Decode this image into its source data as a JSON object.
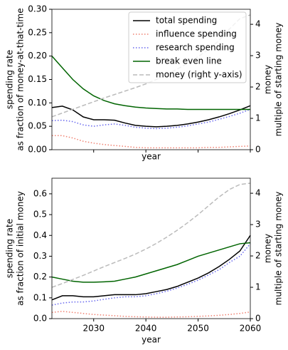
{
  "chart_data": [
    {
      "type": "line",
      "ylabel": [
        "spending rate",
        "as fraction of money-at-that-time"
      ],
      "y2label": [
        "money",
        "multiple of starting money"
      ],
      "xlabel": "year",
      "x": [
        2022,
        2024,
        2026,
        2028,
        2030,
        2032,
        2034,
        2036,
        2038,
        2040,
        2042,
        2044,
        2046,
        2048,
        2050,
        2052,
        2054,
        2056,
        2058,
        2060
      ],
      "xlim": [
        2022,
        2060
      ],
      "xticks": [
        2030,
        2040,
        2050,
        2060
      ],
      "show_xtick_labels": false,
      "ylim": [
        0,
        0.3
      ],
      "yticks": [
        {
          "value": 0,
          "label": "0.00"
        },
        {
          "value": 0.05,
          "label": "0.05"
        },
        {
          "value": 0.1,
          "label": "0.10"
        },
        {
          "value": 0.15,
          "label": "0.15"
        },
        {
          "value": 0.2,
          "label": "0.20"
        },
        {
          "value": 0.25,
          "label": "0.25"
        },
        {
          "value": 0.3,
          "label": "0.30"
        }
      ],
      "y2lim": [
        0,
        4.48
      ],
      "y2ticks": [
        0,
        1,
        2,
        3,
        4
      ],
      "legend": "upper right",
      "series": [
        {
          "name": "total spending",
          "color": "#000000",
          "linestyle": "solid",
          "values": [
            0.09,
            0.093,
            0.085,
            0.07,
            0.064,
            0.064,
            0.063,
            0.057,
            0.052,
            0.05,
            0.049,
            0.05,
            0.052,
            0.055,
            0.059,
            0.064,
            0.07,
            0.077,
            0.085,
            0.094
          ]
        },
        {
          "name": "influence spending",
          "color": "#f08070",
          "linestyle": "dotted",
          "values": [
            0.03,
            0.03,
            0.025,
            0.018,
            0.014,
            0.011,
            0.009,
            0.007,
            0.005,
            0.004,
            0.004,
            0.004,
            0.004,
            0.004,
            0.004,
            0.005,
            0.005,
            0.006,
            0.007,
            0.008
          ]
        },
        {
          "name": "research spending",
          "color": "#6666ee",
          "linestyle": "dotted",
          "values": [
            0.062,
            0.063,
            0.06,
            0.053,
            0.05,
            0.053,
            0.055,
            0.052,
            0.048,
            0.046,
            0.045,
            0.046,
            0.048,
            0.051,
            0.055,
            0.059,
            0.065,
            0.071,
            0.078,
            0.086
          ]
        },
        {
          "name": "break even line",
          "color": "#006400",
          "linestyle": "solid",
          "values": [
            0.2,
            0.175,
            0.15,
            0.13,
            0.115,
            0.105,
            0.098,
            0.094,
            0.091,
            0.089,
            0.088,
            0.087,
            0.087,
            0.086,
            0.086,
            0.086,
            0.086,
            0.086,
            0.086,
            0.086
          ]
        },
        {
          "name": "money (right y-axis)",
          "color": "#bbbbbb",
          "linestyle": "dashed",
          "axis": "y2",
          "values": [
            1.05,
            1.17,
            1.29,
            1.41,
            1.53,
            1.65,
            1.76,
            1.87,
            1.98,
            2.1,
            2.24,
            2.4,
            2.57,
            2.76,
            2.97,
            3.2,
            3.48,
            3.85,
            4.18,
            4.3
          ]
        }
      ]
    },
    {
      "type": "line",
      "ylabel": [
        "spending rate",
        "as fraction of initial money"
      ],
      "y2label": [
        "money",
        "multiple of starting money"
      ],
      "xlabel": "year",
      "x": [
        2022,
        2024,
        2026,
        2028,
        2030,
        2032,
        2034,
        2036,
        2038,
        2040,
        2042,
        2044,
        2046,
        2048,
        2050,
        2052,
        2054,
        2056,
        2058,
        2060
      ],
      "xlim": [
        2022,
        2060
      ],
      "xticks": [
        2030,
        2040,
        2050,
        2060
      ],
      "show_xtick_labels": true,
      "ylim": [
        0,
        0.675
      ],
      "yticks": [
        {
          "value": 0,
          "label": "0.0"
        },
        0.1,
        0.2,
        0.3,
        0.4,
        0.5,
        0.6
      ],
      "y2lim": [
        0,
        4.48
      ],
      "y2ticks": [
        0,
        1,
        2,
        3,
        4
      ],
      "series": [
        {
          "color": "#000000",
          "linestyle": "solid",
          "values": [
            0.09,
            0.11,
            0.11,
            0.105,
            0.105,
            0.11,
            0.115,
            0.115,
            0.115,
            0.12,
            0.13,
            0.14,
            0.155,
            0.175,
            0.195,
            0.22,
            0.25,
            0.285,
            0.325,
            0.4
          ]
        },
        {
          "color": "#f08070",
          "linestyle": "dotted",
          "values": [
            0.03,
            0.035,
            0.03,
            0.025,
            0.02,
            0.017,
            0.014,
            0.011,
            0.009,
            0.008,
            0.007,
            0.007,
            0.008,
            0.009,
            0.011,
            0.013,
            0.016,
            0.02,
            0.025,
            0.032
          ]
        },
        {
          "color": "#6666ee",
          "linestyle": "dotted",
          "values": [
            0.065,
            0.075,
            0.08,
            0.08,
            0.085,
            0.093,
            0.1,
            0.105,
            0.105,
            0.11,
            0.12,
            0.132,
            0.147,
            0.165,
            0.185,
            0.21,
            0.235,
            0.27,
            0.3,
            0.36
          ]
        },
        {
          "color": "#006400",
          "linestyle": "solid",
          "values": [
            0.2,
            0.19,
            0.18,
            0.175,
            0.175,
            0.177,
            0.18,
            0.19,
            0.2,
            0.215,
            0.23,
            0.245,
            0.26,
            0.28,
            0.3,
            0.315,
            0.33,
            0.345,
            0.36,
            0.365
          ]
        },
        {
          "color": "#bbbbbb",
          "linestyle": "dashed",
          "axis": "y2",
          "values": [
            1.0,
            1.12,
            1.25,
            1.38,
            1.52,
            1.66,
            1.79,
            1.92,
            2.06,
            2.22,
            2.4,
            2.6,
            2.82,
            3.06,
            3.32,
            3.6,
            3.88,
            4.12,
            4.28,
            4.32
          ]
        }
      ]
    }
  ]
}
